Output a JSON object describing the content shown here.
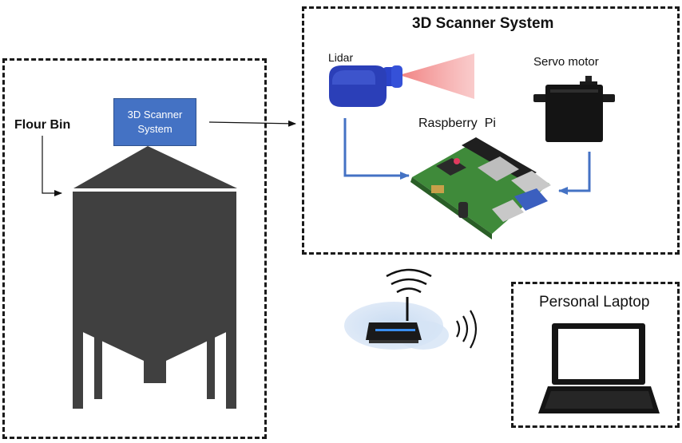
{
  "flour_bin": {
    "label": "Flour Bin"
  },
  "scanner_block": {
    "label": "3D Scanner System"
  },
  "scanner_system": {
    "title": "3D Scanner System",
    "lidar_label": "Lidar",
    "servo_label": "Servo motor",
    "pi_label": "Raspberry  Pi"
  },
  "laptop": {
    "label": "Personal Laptop"
  },
  "colors": {
    "bin": "#404040",
    "accent_blue": "#4472c4",
    "lidar_blue": "#2b3fb8",
    "laser": "#f28b8b",
    "pi_green": "#3f8a3a"
  }
}
